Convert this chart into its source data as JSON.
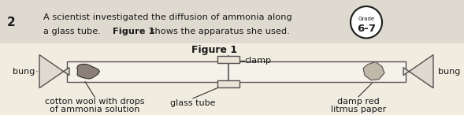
{
  "bg_color": "#f0ece0",
  "header_bg": "#dedad0",
  "question_number": "2",
  "question_text_line1": "A scientist investigated the diffusion of ammonia along",
  "question_text_line2_normal": "a glass tube.  ",
  "question_text_line2_bold": "Figure 1",
  "question_text_line2_end": " shows the apparatus she used.",
  "grade_top": "Grade",
  "grade_bottom": "6-7",
  "figure_title": "Figure 1",
  "label_bung_left": "bung",
  "label_bung_right": "bung",
  "label_clamp": "clamp",
  "label_cotton_line1": "cotton wool with drops",
  "label_cotton_line2": "of ammonia solution",
  "label_glass_tube": "glass tube",
  "label_litmus_line1": "damp red",
  "label_litmus_line2": "litmus paper",
  "tube_fill": "#f5f2ea",
  "tube_edge": "#555050",
  "bung_fill": "#dedad0",
  "bung_edge": "#555050",
  "clamp_fill": "#e8e4d8",
  "clamp_edge": "#555050",
  "cotton_fill": "#8a8078",
  "cotton_edge": "#333030",
  "litmus_fill": "#c0b8a8",
  "litmus_edge": "#555050",
  "text_color": "#1a1a1a",
  "line_color": "#333030"
}
